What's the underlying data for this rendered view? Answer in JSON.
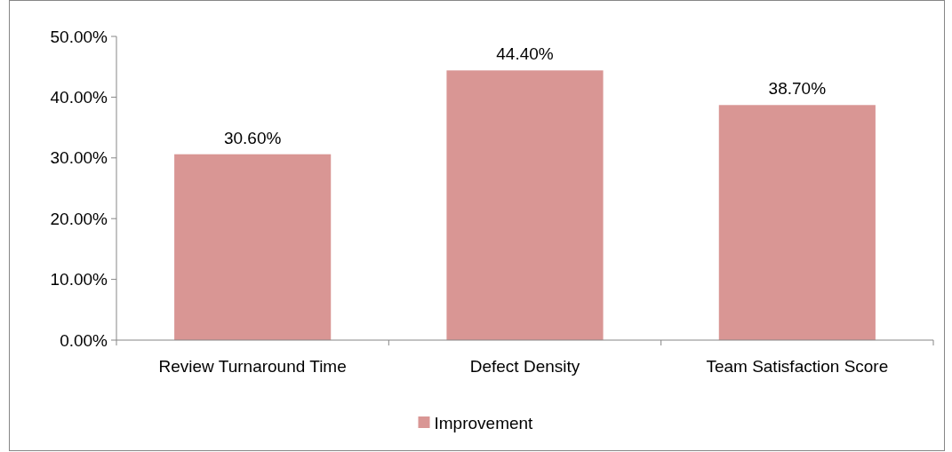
{
  "chart_data": {
    "type": "bar",
    "categories": [
      "Review Turnaround Time",
      "Defect Density",
      "Team Satisfaction Score"
    ],
    "series": [
      {
        "name": "Improvement",
        "color": "#d99694",
        "values": [
          30.6,
          44.4,
          38.7
        ],
        "value_labels": [
          "30.60%",
          "44.40%",
          "38.70%"
        ]
      }
    ],
    "ylim": [
      0,
      50
    ],
    "yticks": [
      {
        "value": 0,
        "label": "0.00%"
      },
      {
        "value": 10,
        "label": "10.00%"
      },
      {
        "value": 20,
        "label": "20.00%"
      },
      {
        "value": 30,
        "label": "30.00%"
      },
      {
        "value": 40,
        "label": "40.00%"
      },
      {
        "value": 50,
        "label": "50.00%"
      }
    ],
    "grid": false,
    "legend": "bottom"
  }
}
